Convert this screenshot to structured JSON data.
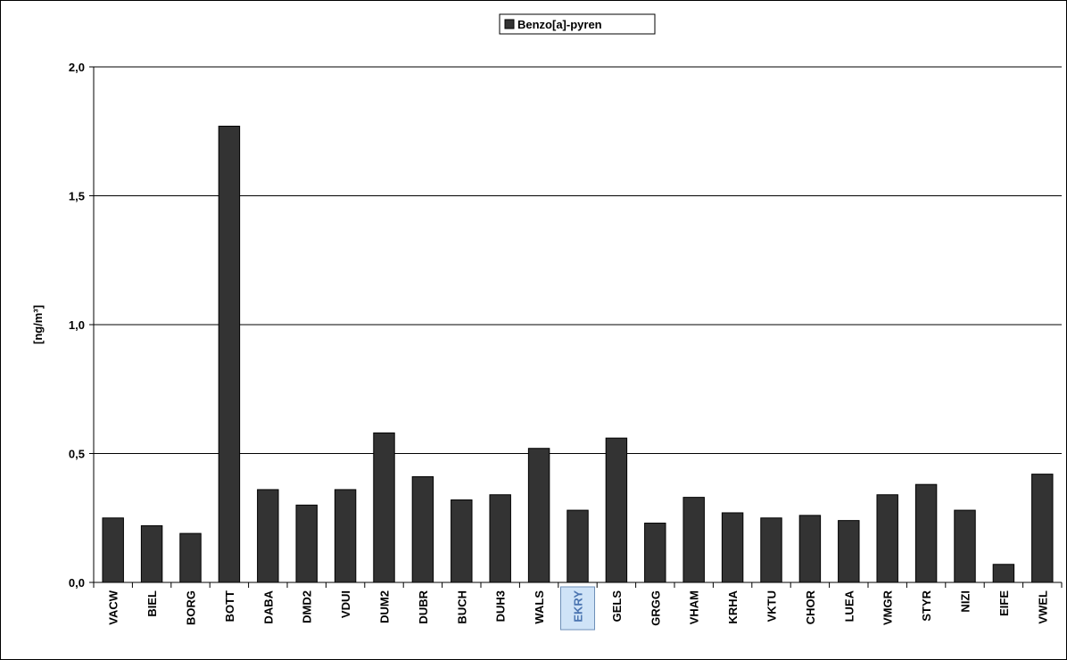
{
  "chart_data": {
    "type": "bar",
    "legend": {
      "entries": [
        "Benzo[a]-pyren"
      ],
      "placement": "top-center"
    },
    "ylabel": "[ng/m³]",
    "ylim": [
      0,
      2.0
    ],
    "yticks": [
      "0,0",
      "0,5",
      "1,0",
      "1,5",
      "2,0"
    ],
    "ytick_values": [
      0,
      0.5,
      1.0,
      1.5,
      2.0
    ],
    "grid": "horizontal",
    "categories": [
      "VACW",
      "BIEL",
      "BORG",
      "BOTT",
      "DABA",
      "DMD2",
      "VDUI",
      "DUM2",
      "DUBR",
      "BUCH",
      "DUH3",
      "WALS",
      "EKRY",
      "GELS",
      "GRGG",
      "VHAM",
      "KRHA",
      "VKTU",
      "CHOR",
      "LUEA",
      "VMGR",
      "STYR",
      "NIZI",
      "EIFE",
      "VWEL"
    ],
    "highlighted_category": "EKRY",
    "series": [
      {
        "name": "Benzo[a]-pyren",
        "values": [
          0.25,
          0.22,
          0.19,
          1.77,
          0.36,
          0.3,
          0.36,
          0.58,
          0.41,
          0.32,
          0.34,
          0.52,
          0.28,
          0.56,
          0.23,
          0.33,
          0.27,
          0.25,
          0.26,
          0.24,
          0.34,
          0.38,
          0.28,
          0.07,
          0.42
        ]
      }
    ],
    "colors": {
      "bar": "#333333",
      "highlight_fill": "#cfe3f7",
      "highlight_border": "#6d8fb8",
      "highlight_text": "#4a74b0"
    }
  }
}
